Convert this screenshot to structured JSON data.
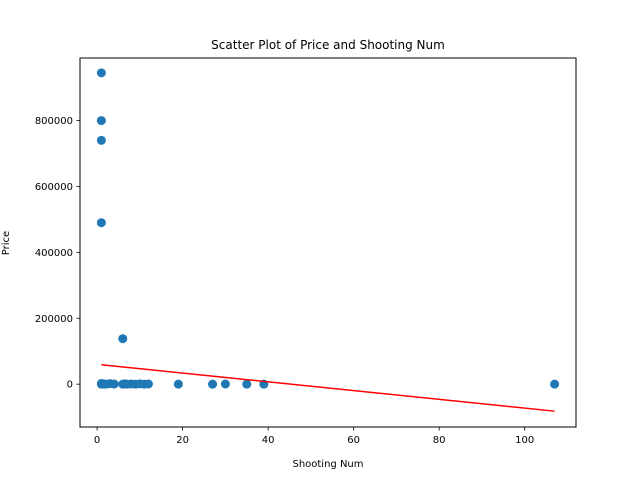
{
  "chart_data": {
    "type": "scatter",
    "title": "Scatter Plot of Price and Shooting Num",
    "xlabel": "Shooting Num",
    "ylabel": "Price",
    "xlim": [
      -4,
      112
    ],
    "ylim": [
      -130000,
      990000
    ],
    "x_ticks": [
      0,
      20,
      40,
      60,
      80,
      100
    ],
    "x_tick_labels": [
      "0",
      "20",
      "40",
      "60",
      "80",
      "100"
    ],
    "y_ticks": [
      0,
      200000,
      400000,
      600000,
      800000
    ],
    "y_tick_labels": [
      "0",
      "200000",
      "400000",
      "600000",
      "800000"
    ],
    "grid": false,
    "colors": {
      "points": "#1f77b4",
      "trend": "#ff0000"
    },
    "series": [
      {
        "marker": "circle",
        "points": [
          {
            "x": 1,
            "y": 945000
          },
          {
            "x": 1,
            "y": 800000
          },
          {
            "x": 1,
            "y": 740000
          },
          {
            "x": 1,
            "y": 490000
          },
          {
            "x": 6,
            "y": 138000
          },
          {
            "x": 1,
            "y": 2000
          },
          {
            "x": 1,
            "y": 0
          },
          {
            "x": 1.5,
            "y": 1000
          },
          {
            "x": 2,
            "y": 0
          },
          {
            "x": 3,
            "y": 1500
          },
          {
            "x": 4,
            "y": 500
          },
          {
            "x": 6,
            "y": 0
          },
          {
            "x": 6.5,
            "y": 1000
          },
          {
            "x": 7,
            "y": 0
          },
          {
            "x": 8,
            "y": 500
          },
          {
            "x": 9,
            "y": 0
          },
          {
            "x": 10,
            "y": 1000
          },
          {
            "x": 11,
            "y": 0
          },
          {
            "x": 12,
            "y": 500
          },
          {
            "x": 19,
            "y": 0
          },
          {
            "x": 27,
            "y": 0
          },
          {
            "x": 30,
            "y": 500
          },
          {
            "x": 35,
            "y": 0
          },
          {
            "x": 39,
            "y": 0
          },
          {
            "x": 107,
            "y": 0
          }
        ]
      }
    ],
    "trendline": {
      "x": [
        1,
        107
      ],
      "y": [
        59000,
        -82000
      ]
    }
  }
}
